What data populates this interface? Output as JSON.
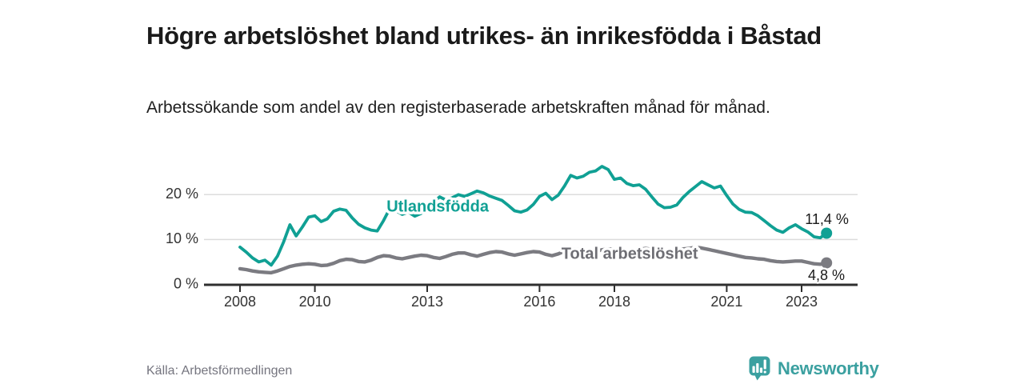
{
  "header": {
    "title": "Högre arbetslöshet bland utrikes- än inrikesfödda i Båstad",
    "subtitle": "Arbetssökande som andel av den registerbaserade arbetskraften månad för månad."
  },
  "footer": {
    "source": "Källa: Arbetsförmedlingen",
    "logo_text": "Newsworthy"
  },
  "colors": {
    "teal": "#10A094",
    "gray_line": "#7B7B81",
    "gray_label": "#6E6E74",
    "grid": "#DCDCDC",
    "axis": "#2F2F2F",
    "text": "#1A1A1A",
    "tick_text": "#333333",
    "source_text": "#75757F",
    "logo_teal": "#3BA0A0"
  },
  "chart_data": {
    "type": "line",
    "title": "Högre arbetslöshet bland utrikes- än inrikesfödda i Båstad",
    "subtitle": "Arbetssökande som andel av den registerbaserade arbetskraften månad för månad.",
    "unit": "%",
    "x_origin": 2008,
    "x_step": 0.166667,
    "xlim": [
      2008,
      2023.9
    ],
    "ylim": [
      0,
      28
    ],
    "grid": "horizontal-only",
    "legend": "inline-labels",
    "x_ticks": [
      {
        "value": 2008,
        "label": "2008"
      },
      {
        "value": 2010,
        "label": "2010"
      },
      {
        "value": 2013,
        "label": "2013"
      },
      {
        "value": 2016,
        "label": "2016"
      },
      {
        "value": 2018,
        "label": "2018"
      },
      {
        "value": 2021,
        "label": "2021"
      },
      {
        "value": 2023,
        "label": "2023"
      }
    ],
    "y_ticks": [
      {
        "value": 0,
        "label": "0 %"
      },
      {
        "value": 10,
        "label": "10 %"
      },
      {
        "value": 20,
        "label": "20 %"
      }
    ],
    "series": [
      {
        "name": "Total arbetslöshet",
        "line_color_key": "gray_line",
        "label_color_key": "gray_label",
        "inline_label": {
          "text": "Total arbetslöshet",
          "x": 2018.41,
          "y": 6.68
        },
        "end_dot": true,
        "end_value": 4.8,
        "end_label": {
          "text": "4,8 %",
          "x": 2023.17,
          "y": 1.87
        },
        "values": [
          3.5,
          3.3,
          3.0,
          2.8,
          2.7,
          2.6,
          3.0,
          3.5,
          4.0,
          4.3,
          4.5,
          4.6,
          4.5,
          4.2,
          4.3,
          4.7,
          5.3,
          5.6,
          5.5,
          5.1,
          5.0,
          5.4,
          6.0,
          6.4,
          6.3,
          5.9,
          5.7,
          6.0,
          6.3,
          6.5,
          6.4,
          6.0,
          5.8,
          6.2,
          6.7,
          7.0,
          7.0,
          6.6,
          6.3,
          6.7,
          7.1,
          7.3,
          7.2,
          6.8,
          6.5,
          6.8,
          7.1,
          7.3,
          7.2,
          6.7,
          6.4,
          6.8,
          7.4,
          7.9,
          7.8,
          7.3,
          7.0,
          7.3,
          7.7,
          7.9,
          7.8,
          7.4,
          7.1,
          7.4,
          7.8,
          8.0,
          7.8,
          7.5,
          7.3,
          7.5,
          7.7,
          7.9,
          8.0,
          8.3,
          8.1,
          7.8,
          7.5,
          7.2,
          6.9,
          6.6,
          6.3,
          6.0,
          5.9,
          5.7,
          5.6,
          5.3,
          5.1,
          5.0,
          5.1,
          5.2,
          5.2,
          4.9,
          4.6,
          4.5,
          4.8
        ]
      },
      {
        "name": "Utlandsfödda",
        "line_color_key": "teal",
        "label_color_key": "teal",
        "inline_label": {
          "text": "Utlandsfödda",
          "x": 2013.28,
          "y": 17.2
        },
        "end_dot": true,
        "end_value": 11.4,
        "end_label": {
          "text": "11,4 %",
          "x": 2023.09,
          "y": 14.35
        },
        "values": [
          8.3,
          7.2,
          5.9,
          5.0,
          5.4,
          4.3,
          6.3,
          9.5,
          13.3,
          10.8,
          12.8,
          15.0,
          15.3,
          14.0,
          14.6,
          16.3,
          16.8,
          16.5,
          14.8,
          13.4,
          12.6,
          12.1,
          11.9,
          14.2,
          16.9,
          16.4,
          15.6,
          16.1,
          15.2,
          15.8,
          17.0,
          18.4,
          19.5,
          18.8,
          19.3,
          20.0,
          19.6,
          20.2,
          20.8,
          20.4,
          19.7,
          19.2,
          18.7,
          17.6,
          16.4,
          16.1,
          16.6,
          17.8,
          19.6,
          20.3,
          18.9,
          19.9,
          21.9,
          24.3,
          23.7,
          24.1,
          25.0,
          25.3,
          26.3,
          25.6,
          23.4,
          23.7,
          22.5,
          22.0,
          22.2,
          21.2,
          19.5,
          17.9,
          17.1,
          17.2,
          17.7,
          19.4,
          20.7,
          21.8,
          22.9,
          22.2,
          21.5,
          21.9,
          19.8,
          17.9,
          16.7,
          16.1,
          16.0,
          15.3,
          14.2,
          13.1,
          12.1,
          11.6,
          12.6,
          13.3,
          12.4,
          11.7,
          10.6,
          10.4,
          11.4
        ]
      }
    ]
  }
}
